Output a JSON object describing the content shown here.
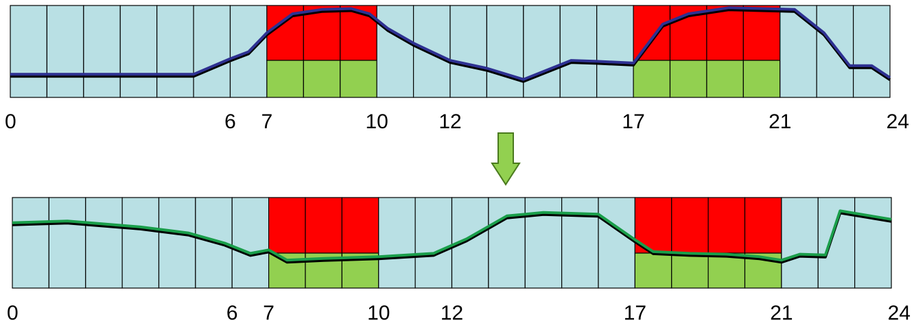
{
  "colors": {
    "background_cell": "#b9e0e4",
    "peak_top": "#ff0000",
    "peak_bottom": "#92d050",
    "cell_border": "#000000",
    "before_line": "#2e3192",
    "after_line": "#1a9e4a",
    "shadow_line": "#000000",
    "arrow_fill": "#92d050",
    "arrow_stroke": "#4a7a1e"
  },
  "arrow": {
    "icon": "down-arrow-icon"
  },
  "panels": [
    {
      "id": "before",
      "hours": 24,
      "peak_ranges": [
        [
          7,
          10
        ],
        [
          17,
          21
        ]
      ],
      "tick_labels": [
        "0",
        "6",
        "7",
        "10",
        "12",
        "17",
        "21",
        "24"
      ],
      "tick_values": [
        0,
        6,
        7,
        10,
        12,
        17,
        21,
        24
      ],
      "curve": [
        [
          0,
          0.22
        ],
        [
          1,
          0.22
        ],
        [
          2,
          0.22
        ],
        [
          3,
          0.22
        ],
        [
          4,
          0.22
        ],
        [
          5,
          0.22
        ],
        [
          6,
          0.4
        ],
        [
          6.5,
          0.48
        ],
        [
          7,
          0.7
        ],
        [
          7.7,
          0.92
        ],
        [
          8.5,
          0.97
        ],
        [
          9.3,
          0.98
        ],
        [
          9.8,
          0.92
        ],
        [
          10.3,
          0.75
        ],
        [
          11,
          0.58
        ],
        [
          12,
          0.38
        ],
        [
          13,
          0.29
        ],
        [
          14,
          0.16
        ],
        [
          15.3,
          0.38
        ],
        [
          16,
          0.37
        ],
        [
          17,
          0.35
        ],
        [
          17.8,
          0.8
        ],
        [
          18.5,
          0.92
        ],
        [
          19.6,
          0.99
        ],
        [
          20.5,
          0.98
        ],
        [
          21.4,
          0.97
        ],
        [
          22.2,
          0.7
        ],
        [
          22.9,
          0.32
        ],
        [
          23.5,
          0.32
        ],
        [
          24,
          0.18
        ]
      ]
    },
    {
      "id": "after",
      "hours": 24,
      "peak_ranges": [
        [
          7,
          10
        ],
        [
          17,
          21
        ]
      ],
      "tick_labels": [
        "0",
        "6",
        "7",
        "10",
        "12",
        "17",
        "21",
        "24"
      ],
      "tick_values": [
        0,
        6,
        7,
        10,
        12,
        17,
        21,
        24
      ],
      "curve": [
        [
          0,
          0.72
        ],
        [
          1.5,
          0.74
        ],
        [
          3.5,
          0.67
        ],
        [
          4.8,
          0.6
        ],
        [
          5.8,
          0.48
        ],
        [
          6.5,
          0.36
        ],
        [
          7,
          0.4
        ],
        [
          7.5,
          0.28
        ],
        [
          8.5,
          0.3
        ],
        [
          10,
          0.32
        ],
        [
          11.5,
          0.36
        ],
        [
          12.4,
          0.53
        ],
        [
          13.5,
          0.8
        ],
        [
          14.5,
          0.84
        ],
        [
          16,
          0.82
        ],
        [
          17,
          0.52
        ],
        [
          17.5,
          0.38
        ],
        [
          18.5,
          0.36
        ],
        [
          19.5,
          0.35
        ],
        [
          20.4,
          0.32
        ],
        [
          21,
          0.28
        ],
        [
          21.5,
          0.35
        ],
        [
          22.2,
          0.34
        ],
        [
          22.6,
          0.86
        ],
        [
          24,
          0.76
        ]
      ]
    }
  ]
}
